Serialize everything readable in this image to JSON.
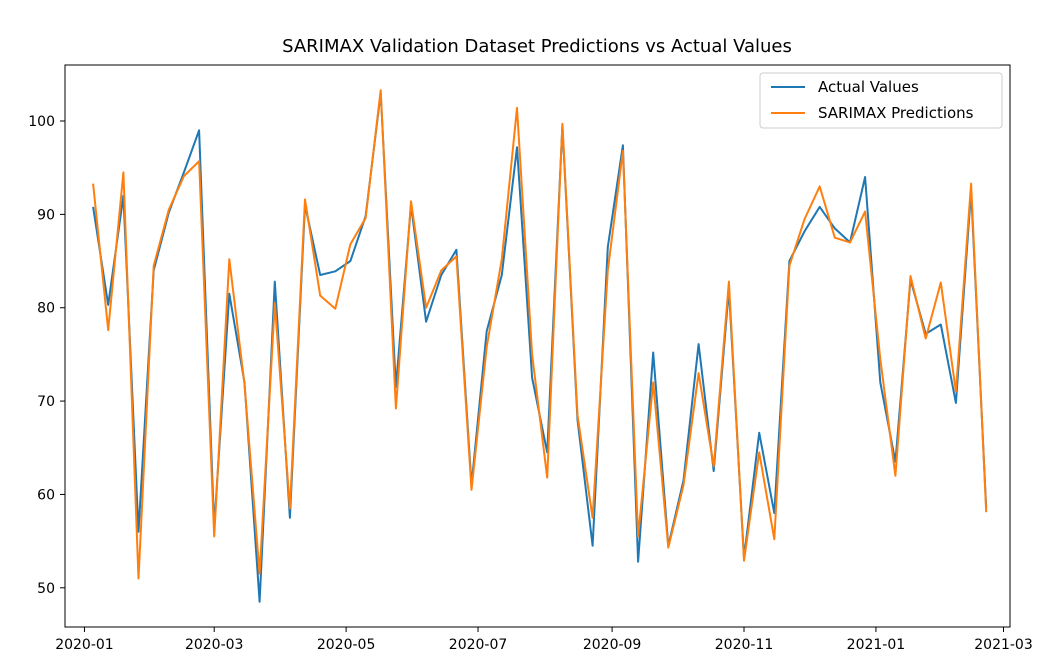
{
  "chart_data": {
    "type": "line",
    "title": "SARIMAX Validation Dataset Predictions vs Actual Values",
    "xlabel": "",
    "ylabel": "",
    "x_axis_type": "date",
    "x_range": [
      "2019-12-23",
      "2021-03-04"
    ],
    "xticks": [
      {
        "date": "2020-01-01",
        "label": "2020-01"
      },
      {
        "date": "2020-03-01",
        "label": "2020-03"
      },
      {
        "date": "2020-05-01",
        "label": "2020-05"
      },
      {
        "date": "2020-07-01",
        "label": "2020-07"
      },
      {
        "date": "2020-09-01",
        "label": "2020-09"
      },
      {
        "date": "2020-11-01",
        "label": "2020-11"
      },
      {
        "date": "2021-01-01",
        "label": "2021-01"
      },
      {
        "date": "2021-03-01",
        "label": "2021-03"
      }
    ],
    "ylim": [
      45.8,
      106
    ],
    "yticks": [
      50,
      60,
      70,
      80,
      90,
      100
    ],
    "grid": false,
    "legend_position": "top-right",
    "x": [
      "2020-01-05",
      "2020-01-12",
      "2020-01-19",
      "2020-01-26",
      "2020-02-02",
      "2020-02-09",
      "2020-02-16",
      "2020-02-23",
      "2020-03-01",
      "2020-03-08",
      "2020-03-15",
      "2020-03-22",
      "2020-03-29",
      "2020-04-05",
      "2020-04-12",
      "2020-04-19",
      "2020-04-26",
      "2020-05-03",
      "2020-05-10",
      "2020-05-17",
      "2020-05-24",
      "2020-05-31",
      "2020-06-07",
      "2020-06-14",
      "2020-06-21",
      "2020-06-28",
      "2020-07-05",
      "2020-07-12",
      "2020-07-19",
      "2020-07-26",
      "2020-08-02",
      "2020-08-09",
      "2020-08-16",
      "2020-08-23",
      "2020-08-30",
      "2020-09-06",
      "2020-09-13",
      "2020-09-20",
      "2020-09-27",
      "2020-10-04",
      "2020-10-11",
      "2020-10-18",
      "2020-10-25",
      "2020-11-01",
      "2020-11-08",
      "2020-11-15",
      "2020-11-22",
      "2020-11-29",
      "2020-12-06",
      "2020-12-13",
      "2020-12-20",
      "2020-12-27",
      "2021-01-03",
      "2021-01-10",
      "2021-01-17",
      "2021-01-24",
      "2021-01-31",
      "2021-02-07",
      "2021-02-14",
      "2021-02-21"
    ],
    "series": [
      {
        "name": "Actual Values",
        "color": "#1f77b4",
        "values": [
          90.8,
          80.3,
          92.0,
          56.0,
          84.0,
          90.2,
          94.5,
          99.0,
          56.5,
          81.5,
          72.0,
          48.5,
          82.8,
          57.5,
          91.0,
          83.5,
          83.9,
          85.0,
          89.8,
          103.0,
          71.5,
          91.0,
          78.5,
          83.5,
          86.2,
          61.0,
          77.5,
          83.5,
          97.2,
          72.5,
          64.5,
          99.5,
          68.0,
          54.5,
          86.5,
          97.4,
          52.8,
          75.2,
          54.5,
          61.5,
          76.1,
          62.5,
          82.0,
          53.2,
          66.6,
          58.0,
          85.0,
          88.2,
          90.8,
          88.5,
          87.0,
          94.0,
          72.0,
          63.5,
          83.0,
          77.2,
          78.2,
          69.8,
          92.5,
          58.5
        ]
      },
      {
        "name": "SARIMAX Predictions",
        "color": "#ff7f0e",
        "values": [
          93.3,
          77.6,
          94.5,
          51.0,
          84.5,
          90.5,
          94.1,
          95.7,
          55.5,
          85.2,
          71.8,
          51.5,
          80.5,
          58.5,
          91.6,
          81.3,
          79.9,
          86.8,
          89.6,
          103.3,
          69.2,
          91.4,
          80.0,
          84.0,
          85.5,
          60.5,
          75.8,
          85.2,
          101.4,
          75.0,
          61.8,
          99.7,
          68.5,
          57.5,
          84.0,
          96.8,
          55.5,
          72.0,
          54.3,
          61.0,
          73.0,
          63.0,
          82.8,
          52.9,
          64.5,
          55.2,
          84.5,
          89.5,
          93.0,
          87.5,
          87.0,
          90.3,
          74.5,
          62.0,
          83.4,
          76.7,
          82.7,
          71.0,
          93.3,
          58.1
        ]
      }
    ]
  }
}
